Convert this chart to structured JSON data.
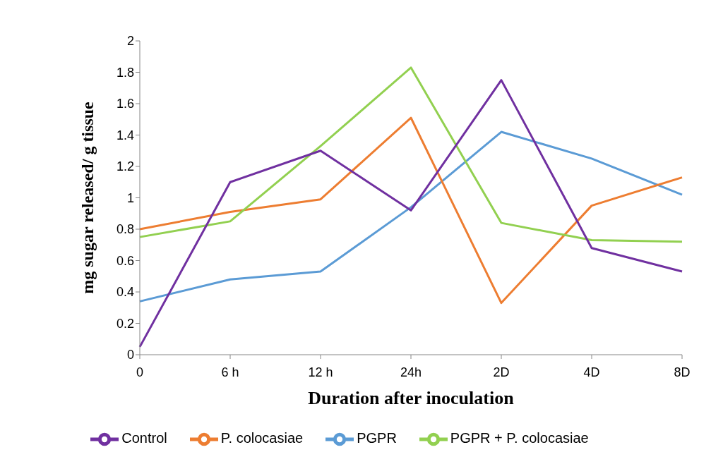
{
  "chart_data": {
    "type": "line",
    "xlabel": "Duration after inoculation",
    "ylabel": "mg sugar released/ g tissue",
    "categories": [
      "0",
      "6 h",
      "12 h",
      "24h",
      "2D",
      "4D",
      "8D"
    ],
    "series": [
      {
        "name": "PGPR",
        "color": "#5b9bd5",
        "values": [
          0.34,
          0.48,
          0.53,
          0.94,
          1.42,
          1.25,
          1.02
        ]
      },
      {
        "name": "P. colocasiae",
        "color": "#ed7d31",
        "values": [
          0.8,
          0.91,
          0.99,
          1.51,
          0.33,
          0.95,
          1.13
        ]
      },
      {
        "name": "PGPR + P. colocasiae",
        "color": "#92d050",
        "values": [
          0.75,
          0.85,
          1.33,
          1.83,
          0.84,
          0.73,
          0.72
        ]
      },
      {
        "name": "Control",
        "color": "#7030a0",
        "values": [
          0.05,
          1.1,
          1.3,
          0.92,
          1.75,
          0.68,
          0.53
        ]
      }
    ],
    "ylim": [
      0,
      2
    ],
    "yticks": [
      0,
      0.2,
      0.4,
      0.6,
      0.8,
      1,
      1.2,
      1.4,
      1.6,
      1.8,
      2
    ],
    "grid": false,
    "legend": "bottom",
    "marker": "none",
    "line_style": "solid"
  }
}
